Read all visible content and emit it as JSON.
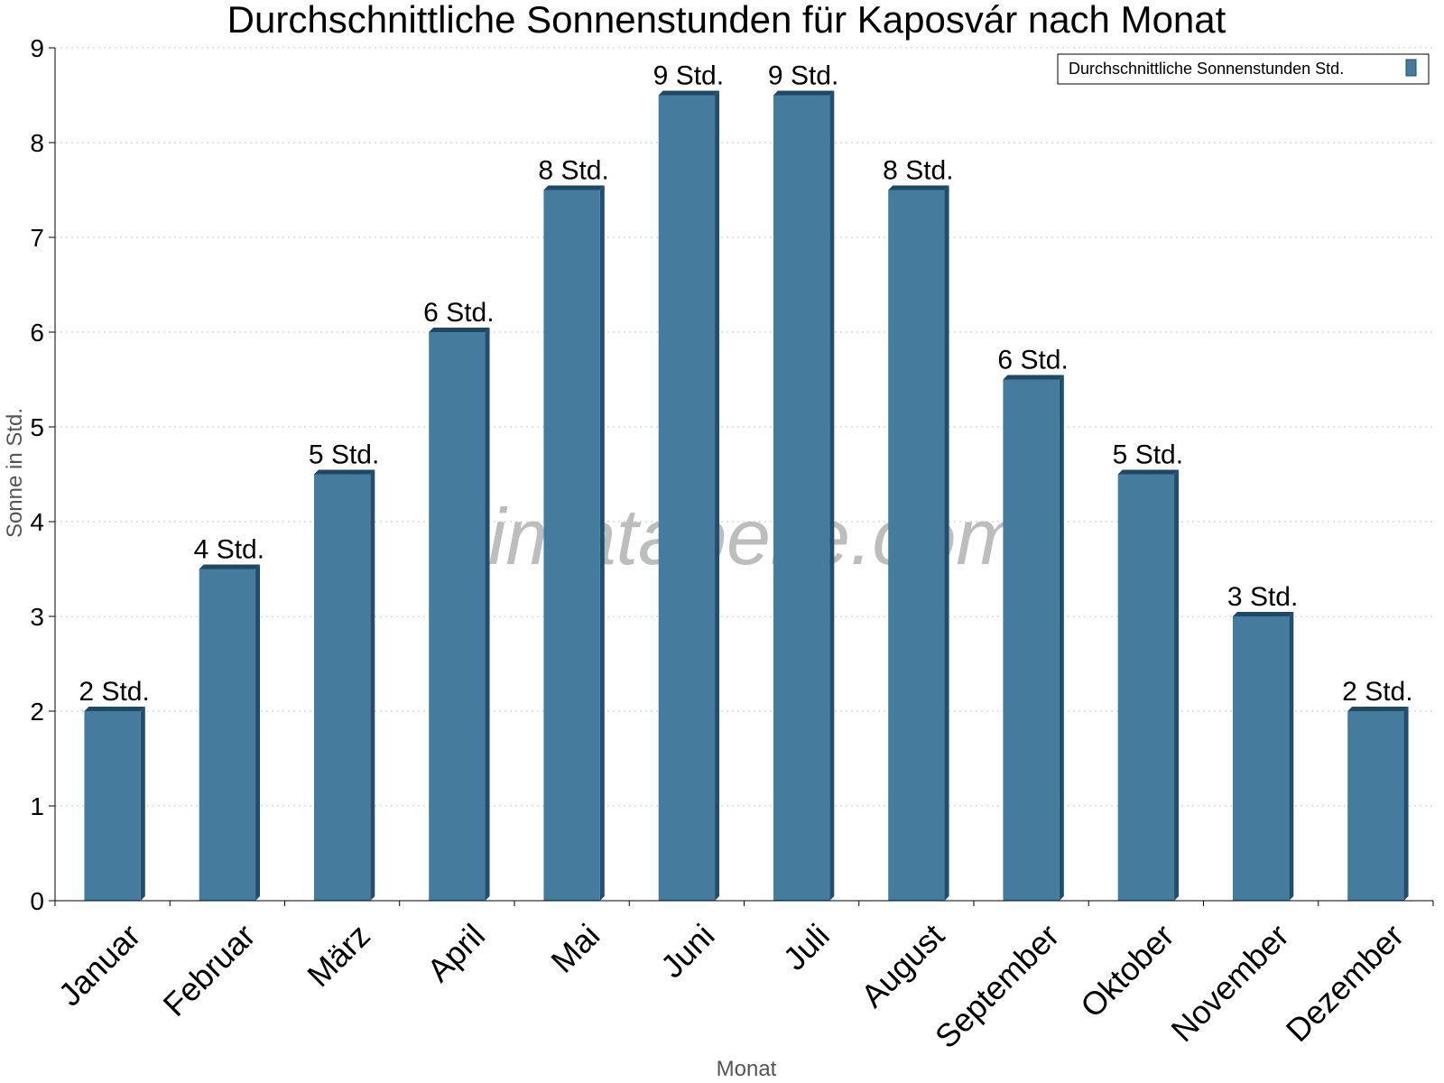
{
  "chart_data": {
    "type": "bar",
    "title": "Durchschnittliche Sonnenstunden für Kaposvár nach Monat",
    "xlabel": "Monat",
    "ylabel": "Sonne in Std.",
    "ylim": [
      0,
      9
    ],
    "yticks": [
      "0",
      "1",
      "2",
      "3",
      "4",
      "5",
      "6",
      "7",
      "8",
      "9"
    ],
    "grid": true,
    "legend_position": "top-right",
    "categories": [
      "Januar",
      "Februar",
      "März",
      "April",
      "Mai",
      "Juni",
      "Juli",
      "August",
      "September",
      "Oktober",
      "November",
      "Dezember"
    ],
    "series": [
      {
        "name": "Durchschnittliche Sonnenstunden Std.",
        "values": [
          2,
          3.5,
          4.5,
          6,
          7.5,
          8.5,
          8.5,
          7.5,
          5.5,
          4.5,
          3,
          2
        ],
        "labels": [
          "2 Std.",
          "4 Std.",
          "5 Std.",
          "6 Std.",
          "8 Std.",
          "9 Std.",
          "9 Std.",
          "8 Std.",
          "6 Std.",
          "5 Std.",
          "3 Std.",
          "2 Std."
        ]
      }
    ],
    "colors": {
      "bar": "#457b9d",
      "bar_side": "#1f4e6e",
      "bar_top": "#1a4a6a"
    }
  },
  "watermark": "klimatabelle.com"
}
